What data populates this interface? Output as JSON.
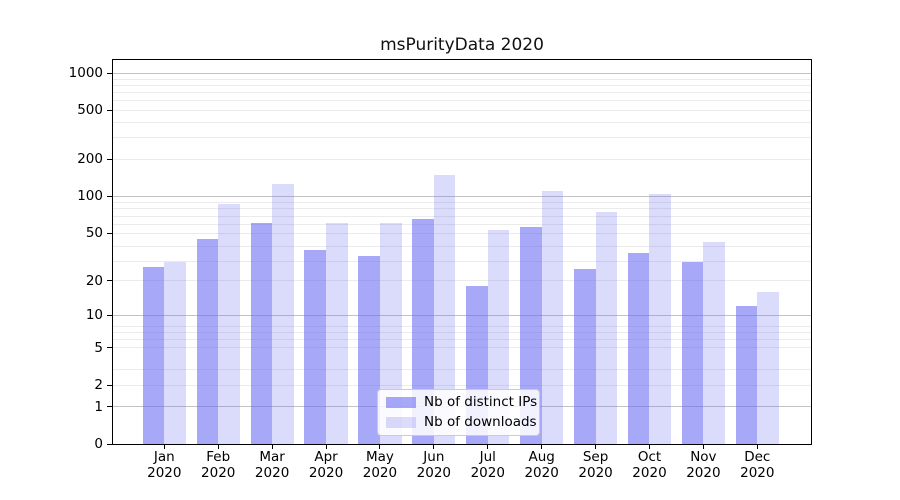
{
  "figure": {
    "background": "#ffffff",
    "axis_color": "#000000",
    "grid_major_color": "#c3c3c3",
    "grid_minor_color": "#ebebeb"
  },
  "chart_data": {
    "type": "bar",
    "title": "msPurityData 2020",
    "categories": [
      "Jan",
      "Feb",
      "Mar",
      "Apr",
      "May",
      "Jun",
      "Jul",
      "Aug",
      "Sep",
      "Oct",
      "Nov",
      "Dec"
    ],
    "year_label": "2020",
    "series": [
      {
        "name": "Nb of distinct IPs",
        "color": "rgba(100,100,242,0.56)",
        "values": [
          26,
          45,
          61,
          36,
          32,
          65,
          18,
          56,
          25,
          34,
          29,
          12
        ]
      },
      {
        "name": "Nb of downloads",
        "color": "rgba(100,100,242,0.23)",
        "values": [
          29,
          86,
          125,
          61,
          61,
          150,
          53,
          110,
          74,
          105,
          42,
          16
        ]
      }
    ],
    "y_ticks": [
      0,
      1,
      2,
      5,
      10,
      20,
      50,
      100,
      200,
      500,
      1000
    ],
    "y_major_grid_values": [
      1,
      10,
      100,
      1000
    ],
    "y_scale": "log1p",
    "ylim": [
      0,
      1281
    ],
    "xlabel": "",
    "ylabel": "",
    "grid": "horizontal",
    "legend_position": "lower-center"
  }
}
